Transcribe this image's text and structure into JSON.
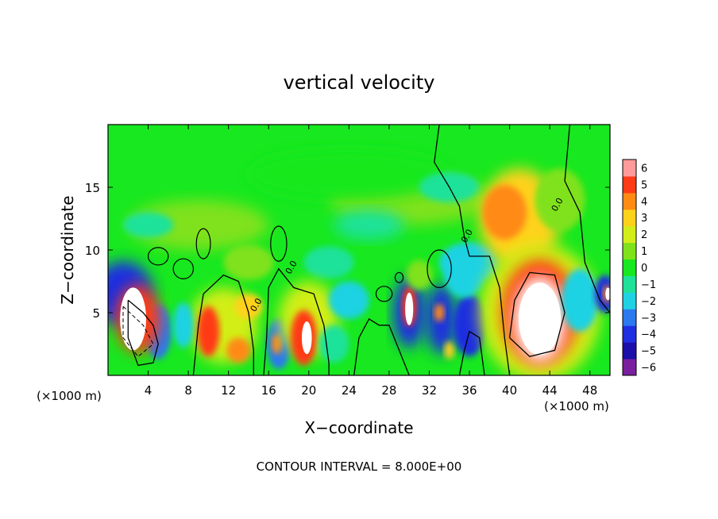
{
  "chart_data": {
    "type": "heatmap",
    "title": "vertical velocity",
    "xlabel": "X−coordinate",
    "ylabel": "Z−coordinate",
    "x_unit_label": "(×1000 m)",
    "y_unit_label": "(×1000 m)",
    "footer": "CONTOUR INTERVAL = 8.000E+00",
    "xlim": [
      0,
      50
    ],
    "ylim": [
      0,
      20
    ],
    "x_ticks": [
      4,
      8,
      12,
      16,
      20,
      24,
      28,
      32,
      36,
      40,
      44,
      48
    ],
    "y_ticks": [
      5,
      10,
      15
    ],
    "colorbar": {
      "min": -6,
      "max": 6,
      "ticks": [
        6,
        5,
        4,
        3,
        2,
        1,
        0,
        -1,
        -2,
        -3,
        -4,
        -5,
        -6
      ],
      "tick_labels": [
        "6",
        "5",
        "4",
        "3",
        "2",
        "1",
        "0",
        "−1",
        "−2",
        "−3",
        "−4",
        "−5",
        "−6"
      ],
      "colors": [
        "#7a1f9e",
        "#1a0fa8",
        "#1d2fe0",
        "#2a79ee",
        "#1fd2e3",
        "#1ee29a",
        "#17e81f",
        "#7fe21a",
        "#d2ee18",
        "#ffd21a",
        "#ff8a14",
        "#ff3a16",
        "#ff9a9a"
      ]
    },
    "features": [
      {
        "kind": "updraft",
        "x": 3,
        "z": 4.5,
        "max_value": 7
      },
      {
        "kind": "updraft",
        "x": 10,
        "z": 3.5,
        "max_value": 5
      },
      {
        "kind": "updraft",
        "x": 20,
        "z": 3.5,
        "max_value": 6
      },
      {
        "kind": "updraft",
        "x": 30,
        "z": 5.5,
        "max_value": 6
      },
      {
        "kind": "updraft",
        "x": 39,
        "z": 12.5,
        "max_value": 5
      },
      {
        "kind": "updraft",
        "x": 43,
        "z": 5,
        "max_value": 9
      },
      {
        "kind": "downdraft",
        "x": 1,
        "z": 6,
        "min_value": -5
      },
      {
        "kind": "downdraft",
        "x": 33,
        "z": 4.5,
        "min_value": -5
      },
      {
        "kind": "downdraft",
        "x": 47.5,
        "z": 7,
        "min_value": -4
      }
    ],
    "contour_labels": [
      {
        "text": "0.0",
        "x": 15,
        "z": 5.5
      },
      {
        "text": "0.0",
        "x": 18.5,
        "z": 8.5
      },
      {
        "text": "0.0",
        "x": 36,
        "z": 11
      },
      {
        "text": "0.0",
        "x": 45,
        "z": 13.5
      }
    ]
  }
}
